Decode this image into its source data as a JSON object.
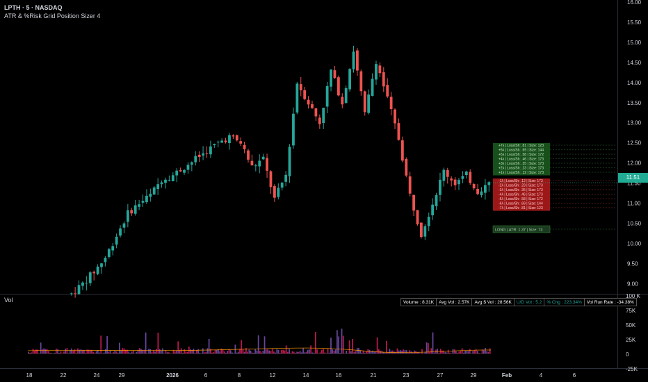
{
  "header": {
    "symbol_line": "LPTH · 5 · NASDAQ",
    "indicator_line": "ATR & %Risk Grid Position Sizer 4"
  },
  "volume_pane": {
    "label": "Vol",
    "stats": [
      {
        "text": "Volume : 8.31K",
        "color": "white"
      },
      {
        "text": "Avg Vol : 2.57K",
        "color": "white"
      },
      {
        "text": "Avg $ Vol : 28.56K",
        "color": "white"
      },
      {
        "text": "U/D Vol : 5.2",
        "color": "green"
      },
      {
        "text": "% Chg : 223.34%",
        "color": "green"
      },
      {
        "text": "Vol Run Rate : -34.38%",
        "color": "white"
      }
    ]
  },
  "last_price": "11.51",
  "colors": {
    "background": "#000000",
    "up_candle": "#26a69a",
    "down_candle": "#ef5350",
    "volume_pink": "#e91e63",
    "volume_purple": "#7e57c2",
    "profit_box": "#1b5e20",
    "loss_box": "#b71c1c",
    "price_badge": "#22ab94"
  },
  "grid": {
    "profit_rows": [
      "+7λ | Loss/Sh: .81 | Size: 123",
      "+6λ | Loss/Sh: .69 | Size: 144",
      "+5λ | Loss/Sh: .58 | Size: 172",
      "+4λ | Loss/Sh: .46 | Size: 173",
      "+3λ | Loss/Sh: .35 | Size: 173",
      "+2λ | Loss/Sh: .23 | Size: 173",
      "+1λ | Loss/Sh: .12 | Size: 173"
    ],
    "loss_rows": [
      "-1λ | Loss/Sh: .12 | Size: 173",
      "-2λ | Loss/Sh: .23 | Size: 173",
      "-3λ | Loss/Sh: .35 | Size: 173",
      "-4λ | Loss/Sh: .46 | Size: 173",
      "-5λ | Loss/Sh: .58 | Size: 172",
      "-6λ | Loss/Sh: .69 | Size: 144",
      "-7λ | Loss/Sh: .81 | Size: 123"
    ],
    "long_label": "LONG | ATR: 1.37 | Size: 73"
  },
  "chart_data": {
    "type": "candlestick",
    "title": "LPTH · 5 · NASDAQ",
    "timeframe": "5",
    "y_ticks": [
      "16.00",
      "15.50",
      "15.00",
      "14.50",
      "14.00",
      "13.50",
      "13.00",
      "12.50",
      "12.00",
      "11.50",
      "11.00",
      "10.50",
      "10.00",
      "9.50",
      "9.00"
    ],
    "ylim": [
      8.75,
      16.05
    ],
    "x_ticks": [
      "18",
      "22",
      "24",
      "29",
      "2026",
      "6",
      "8",
      "12",
      "14",
      "16",
      "21",
      "23",
      "27",
      "29",
      "Feb",
      "4",
      "6"
    ],
    "volume_y_ticks": [
      "100 K",
      "75K",
      "50K",
      "25K",
      "0",
      "-25K"
    ],
    "price_path": [
      [
        0,
        8.75
      ],
      [
        3,
        9.0
      ],
      [
        6,
        9.3
      ],
      [
        9,
        9.65
      ],
      [
        12,
        10.2
      ],
      [
        15,
        10.75
      ],
      [
        18,
        11.0
      ],
      [
        21,
        11.2
      ],
      [
        24,
        11.6
      ],
      [
        27,
        11.7
      ],
      [
        30,
        11.9
      ],
      [
        33,
        12.1
      ],
      [
        36,
        12.3
      ],
      [
        39,
        12.5
      ],
      [
        42,
        12.65
      ],
      [
        45,
        12.5
      ],
      [
        48,
        11.9
      ],
      [
        51,
        12.1
      ],
      [
        54,
        11.1
      ],
      [
        57,
        11.7
      ],
      [
        60,
        14.0
      ],
      [
        63,
        13.5
      ],
      [
        66,
        13.0
      ],
      [
        69,
        14.3
      ],
      [
        72,
        13.5
      ],
      [
        75,
        14.8
      ],
      [
        78,
        13.2
      ],
      [
        81,
        14.55
      ],
      [
        84,
        13.6
      ],
      [
        87,
        12.6
      ],
      [
        90,
        11.2
      ],
      [
        93,
        10.25
      ],
      [
        96,
        11.0
      ],
      [
        99,
        11.8
      ],
      [
        102,
        11.5
      ],
      [
        105,
        11.7
      ],
      [
        108,
        11.3
      ],
      [
        111,
        11.5
      ]
    ],
    "candle_count": 112,
    "lows_highs_note": ""
  }
}
